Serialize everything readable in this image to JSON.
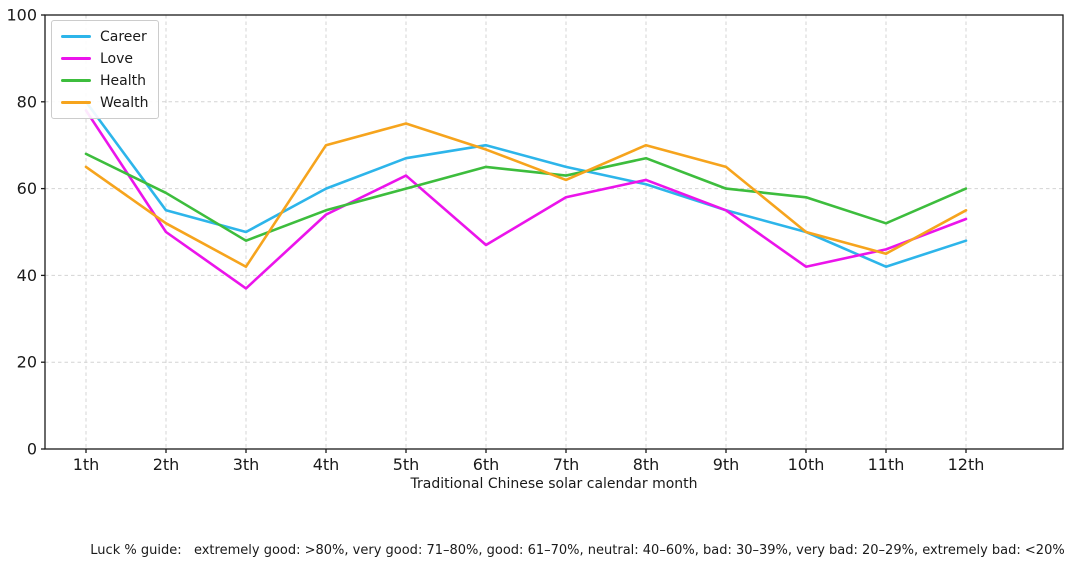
{
  "chart_data": {
    "type": "line",
    "title": "",
    "xlabel": "Traditional Chinese solar calendar month",
    "ylabel": "",
    "categories": [
      "1th",
      "2th",
      "3th",
      "4th",
      "5th",
      "6th",
      "7th",
      "8th",
      "9th",
      "10th",
      "11th",
      "12th"
    ],
    "yticks": [
      0,
      20,
      40,
      60,
      80,
      100
    ],
    "ylim": [
      0,
      100
    ],
    "grid": true,
    "legend_position": "upper-left",
    "series": [
      {
        "name": "Career",
        "color": "#2db5ea",
        "values": [
          80,
          55,
          50,
          60,
          67,
          70,
          65,
          61,
          55,
          50,
          42,
          48
        ]
      },
      {
        "name": "Love",
        "color": "#eb14eb",
        "values": [
          78,
          50,
          37,
          54,
          63,
          47,
          58,
          62,
          55,
          42,
          46,
          53
        ]
      },
      {
        "name": "Health",
        "color": "#3dbd3d",
        "values": [
          68,
          59,
          48,
          55,
          60,
          65,
          63,
          67,
          60,
          58,
          52,
          60
        ]
      },
      {
        "name": "Wealth",
        "color": "#f6a41d",
        "values": [
          65,
          52,
          42,
          70,
          75,
          69,
          62,
          70,
          65,
          50,
          45,
          55
        ]
      }
    ],
    "caption": "Luck % guide:   extremely good: >80%, very good: 71–80%, good: 61–70%, neutral: 40–60%, bad: 30–39%, very bad: 20–29%, extremely bad: <20%"
  }
}
